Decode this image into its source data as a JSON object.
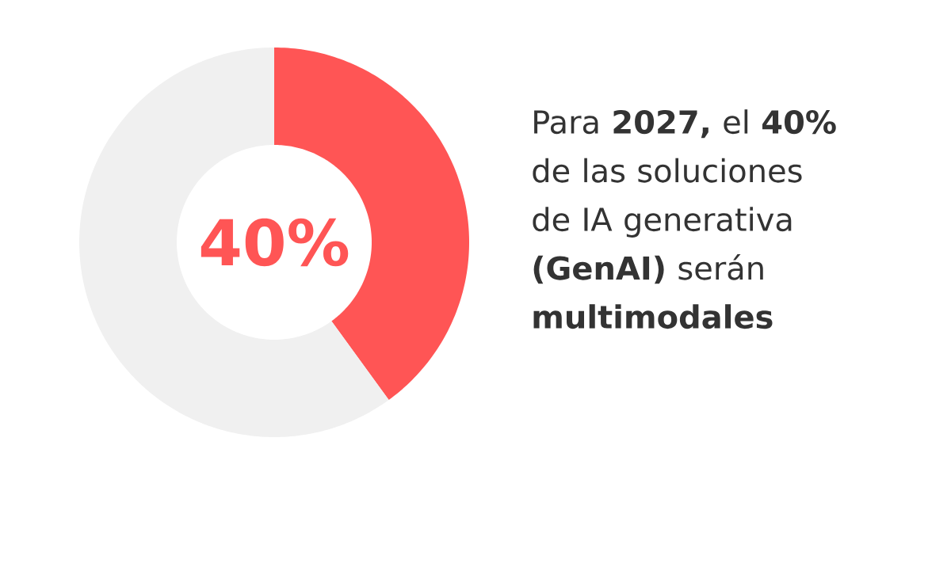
{
  "chart_data": {
    "type": "donut",
    "title": "Para **2027,** el **40%** de las soluciones de IA generativa **(GenAI)** serán **multimodales**",
    "categories": [
      null,
      null
    ],
    "values": [
      40,
      60
    ],
    "colors": [
      "#ff5555",
      "#f0f0f0"
    ],
    "value_labels": [
      "40%",
      null
    ]
  }
}
